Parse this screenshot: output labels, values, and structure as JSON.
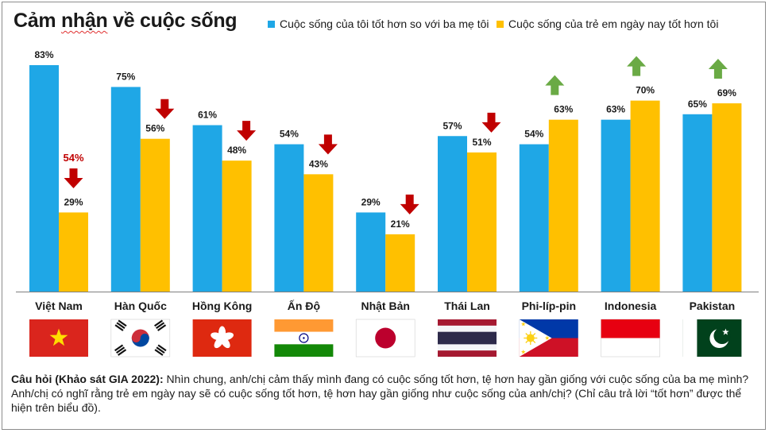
{
  "title": "Cảm nhận về cuộc sống",
  "title_misspelled_word": "nhận",
  "legend": [
    {
      "label": "Cuộc sống của tôi tốt hơn so với ba mẹ tôi",
      "color": "#1fa7e6"
    },
    {
      "label": "Cuộc sống của trẻ em ngày nay tốt hơn tôi",
      "color": "#ffc000"
    }
  ],
  "chart_data": {
    "type": "bar",
    "categories": [
      "Việt Nam",
      "Hàn Quốc",
      "Hồng Kông",
      "Ấn Độ",
      "Nhật Bản",
      "Thái Lan",
      "Phi-líp-pin",
      "Indonesia",
      "Pakistan"
    ],
    "series": [
      {
        "name": "Cuộc sống của tôi tốt hơn so với ba mẹ tôi",
        "values": [
          83,
          75,
          61,
          54,
          29,
          57,
          54,
          63,
          65
        ],
        "color": "#1fa7e6"
      },
      {
        "name": "Cuộc sống của trẻ em ngày nay tốt hơn tôi",
        "values": [
          29,
          56,
          48,
          43,
          21,
          51,
          63,
          70,
          69
        ],
        "color": "#ffc000"
      }
    ],
    "data_labels_1": [
      "83%",
      "75%",
      "61%",
      "54%",
      "29%",
      "57%",
      "54%",
      "63%",
      "65%"
    ],
    "data_labels_2": [
      "29%",
      "56%",
      "48%",
      "43%",
      "21%",
      "51%",
      "63%",
      "70%",
      "69%"
    ],
    "trend": [
      "down",
      "down",
      "down",
      "down",
      "down",
      "down",
      "up",
      "up",
      "up"
    ],
    "annotations": [
      {
        "category": "Việt Nam",
        "text": "54%",
        "color": "#c00000"
      }
    ],
    "ylim": [
      0,
      100
    ],
    "grid": false,
    "legend_position": "top-right",
    "flags": [
      "vietnam-flag",
      "south-korea-flag",
      "hong-kong-flag",
      "india-flag",
      "japan-flag",
      "thailand-flag",
      "philippines-flag",
      "indonesia-flag",
      "pakistan-flag"
    ],
    "colors": {
      "down_arrow": "#c00000",
      "up_arrow": "#6aaa45",
      "axis": "#7f7f7f"
    }
  },
  "footnote": {
    "question_label": "Câu hỏi (Khảo sát GIA 2022):",
    "text": "Nhìn chung, anh/chị cảm thấy mình đang có cuộc sống tốt hơn, tệ hơn hay gần giống với cuộc sống của ba mẹ mình? Anh/chị có nghĩ rằng trẻ em ngày nay sẽ có cuộc sống tốt hơn, tệ hơn hay gần giống như cuộc sống của anh/chị? (Chỉ câu trả lời “tốt hơn” được thể hiện trên biểu đồ)."
  }
}
